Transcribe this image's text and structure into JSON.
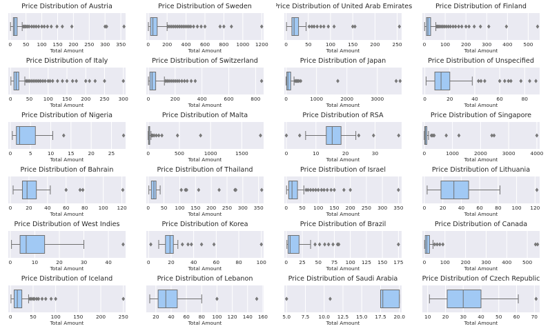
{
  "chart_data": [
    {
      "type": "box",
      "title": "Price Distribution of Austria",
      "xlabel": "Total Amount",
      "xlim": [
        -6,
        365
      ],
      "ticks": [
        0,
        50,
        100,
        150,
        200,
        250,
        300,
        350
      ],
      "q1": 10,
      "median": 14,
      "q3": 22,
      "whisker_low": 1,
      "whisker_high": 38,
      "outliers": [
        42,
        46,
        50,
        55,
        60,
        68,
        75,
        82,
        90,
        100,
        108,
        118,
        130,
        148,
        165,
        195,
        300,
        305,
        360
      ]
    },
    {
      "type": "box",
      "title": "Price Distribution of Sweden",
      "xlabel": "Total Amount",
      "xlim": [
        -20,
        1220
      ],
      "ticks": [
        0,
        200,
        400,
        600,
        800,
        1000,
        1200
      ],
      "q1": 25,
      "median": 50,
      "q3": 95,
      "whisker_low": 2,
      "whisker_high": 200,
      "outliers": [
        210,
        230,
        250,
        270,
        290,
        310,
        330,
        350,
        370,
        390,
        410,
        430,
        450,
        480,
        520,
        560,
        600,
        760,
        800,
        880,
        1200
      ]
    },
    {
      "type": "box",
      "title": "Price Distribution of United Arab Emirates",
      "xlabel": "Total Amount",
      "xlim": [
        -4,
        260
      ],
      "ticks": [
        0,
        50,
        100,
        150,
        200,
        250
      ],
      "q1": 13,
      "median": 18,
      "q3": 28,
      "whisker_low": 1,
      "whisker_high": 45,
      "outliers": [
        52,
        58,
        63,
        70,
        78,
        85,
        95,
        108,
        150,
        155,
        255
      ]
    },
    {
      "type": "box",
      "title": "Price Distribution of Finland",
      "xlabel": "Total Amount",
      "xlim": [
        -10,
        555
      ],
      "ticks": [
        0,
        100,
        200,
        300,
        400,
        500
      ],
      "q1": 10,
      "median": 17,
      "q3": 30,
      "whisker_low": 1,
      "whisker_high": 55,
      "outliers": [
        60,
        66,
        72,
        80,
        88,
        96,
        105,
        115,
        125,
        138,
        150,
        165,
        180,
        200,
        215,
        240,
        270,
        310,
        395,
        545
      ]
    },
    {
      "type": "box",
      "title": "Price Distribution of Italy",
      "xlabel": "Total Amount",
      "xlim": [
        -6,
        306
      ],
      "ticks": [
        0,
        50,
        100,
        150,
        200,
        250,
        300
      ],
      "q1": 9,
      "median": 15,
      "q3": 22,
      "whisker_low": 1,
      "whisker_high": 38,
      "outliers": [
        42,
        46,
        50,
        55,
        60,
        65,
        70,
        75,
        80,
        86,
        92,
        100,
        105,
        112,
        125,
        138,
        150,
        165,
        175,
        200,
        210,
        225,
        250,
        300
      ]
    },
    {
      "type": "box",
      "title": "Price Distribution of Switzerland",
      "xlabel": "Total Amount",
      "xlim": [
        -15,
        860
      ],
      "ticks": [
        0,
        200,
        400,
        600,
        800
      ],
      "q1": 12,
      "median": 28,
      "q3": 55,
      "whisker_low": 1,
      "whisker_high": 120,
      "outliers": [
        130,
        142,
        155,
        170,
        185,
        200,
        215,
        230,
        250,
        270,
        290,
        320,
        350,
        845
      ]
    },
    {
      "type": "box",
      "title": "Price Distribution of Japan",
      "xlabel": "Total Amount",
      "xlim": [
        -60,
        3800
      ],
      "ticks": [
        0,
        1000,
        2000,
        3000
      ],
      "q1": 20,
      "median": 60,
      "q3": 150,
      "whisker_low": 1,
      "whisker_high": 260,
      "outliers": [
        300,
        340,
        380,
        420,
        480,
        1700,
        3620,
        3750
      ]
    },
    {
      "type": "box",
      "title": "Price Distribution of Unspecified",
      "xlabel": "Total Amount",
      "xlim": [
        -2,
        92
      ],
      "ticks": [
        0,
        20,
        40,
        60,
        80
      ],
      "q1": 8,
      "median": 13,
      "q3": 20,
      "whisker_low": 1,
      "whisker_high": 38,
      "outliers": [
        43,
        45,
        48,
        60,
        64,
        67,
        69,
        77,
        84,
        89
      ]
    },
    {
      "type": "box",
      "title": "Price Distribution of Nigeria",
      "xlabel": "Total Amount",
      "xlim": [
        -0.5,
        28.5
      ],
      "ticks": [
        0,
        5,
        10,
        15,
        20,
        25
      ],
      "q1": 1.5,
      "median": 2.3,
      "q3": 6.2,
      "whisker_low": 0.5,
      "whisker_high": 10.5,
      "outliers": [
        13.2,
        28
      ]
    },
    {
      "type": "box",
      "title": "Price Distribution of Malta",
      "xlabel": "Total Amount",
      "xlim": [
        -30,
        1850
      ],
      "ticks": [
        0,
        500,
        1000,
        1500
      ],
      "q1": 6,
      "median": 12,
      "q3": 25,
      "whisker_low": 1,
      "whisker_high": 45,
      "outliers": [
        55,
        70,
        95,
        130,
        170,
        220,
        470,
        840,
        1800
      ]
    },
    {
      "type": "box",
      "title": "Price Distribution of RSA",
      "xlabel": "Total Amount",
      "xlim": [
        -0.7,
        39
      ],
      "ticks": [
        0,
        10,
        20,
        30
      ],
      "q1": 13.5,
      "median": 15.5,
      "q3": 18.5,
      "whisker_low": 6.5,
      "whisker_high": 23.5,
      "outliers": [
        0,
        4.5,
        24.5,
        29.5,
        38
      ]
    },
    {
      "type": "box",
      "title": "Price Distribution of Singapore",
      "xlabel": "Total Amount",
      "xlim": [
        -70,
        4100
      ],
      "ticks": [
        0,
        1000,
        2000,
        3000,
        4000
      ],
      "q1": 15,
      "median": 40,
      "q3": 90,
      "whisker_low": 1,
      "whisker_high": 150,
      "outliers": [
        250,
        300,
        350,
        780,
        1230,
        2400,
        2480,
        4000
      ]
    },
    {
      "type": "box",
      "title": "Price Distribution of Bahrain",
      "xlabel": "Total Amount",
      "xlim": [
        -2.2,
        124
      ],
      "ticks": [
        0,
        20,
        40,
        60,
        80,
        100,
        120
      ],
      "q1": 13,
      "median": 18,
      "q3": 28,
      "whisker_low": 3,
      "whisker_high": 43,
      "outliers": [
        60,
        75,
        78,
        121
      ]
    },
    {
      "type": "box",
      "title": "Price Distribution of Thailand",
      "xlabel": "Total Amount",
      "xlim": [
        -6,
        366
      ],
      "ticks": [
        0,
        50,
        100,
        150,
        200,
        250,
        300,
        350
      ],
      "q1": 10,
      "median": 18,
      "q3": 25,
      "whisker_low": 2,
      "whisker_high": 38,
      "outliers": [
        105,
        118,
        122,
        160,
        225,
        275,
        278,
        360
      ]
    },
    {
      "type": "box",
      "title": "Price Distribution of Israel",
      "xlabel": "Total Amount",
      "xlim": [
        -6,
        360
      ],
      "ticks": [
        0,
        50,
        100,
        150,
        200,
        250,
        300,
        350
      ],
      "q1": 8,
      "median": 18,
      "q3": 35,
      "whisker_low": 1,
      "whisker_high": 55,
      "outliers": [
        62,
        68,
        76,
        84,
        92,
        100,
        110,
        118,
        128,
        140,
        150,
        180,
        200,
        350
      ]
    },
    {
      "type": "box",
      "title": "Price Distribution of Lithuania",
      "xlabel": "Total Amount",
      "xlim": [
        -2.2,
        125
      ],
      "ticks": [
        0,
        20,
        40,
        60,
        80,
        100,
        120
      ],
      "q1": 18,
      "median": 32,
      "q3": 48,
      "whisker_low": 3,
      "whisker_high": 82,
      "outliers": [
        122
      ]
    },
    {
      "type": "box",
      "title": "Price Distribution of West Indies",
      "xlabel": "Total Amount",
      "xlim": [
        -0.8,
        47
      ],
      "ticks": [
        0,
        10,
        20,
        30,
        40
      ],
      "q1": 4,
      "median": 6.5,
      "q3": 14,
      "whisker_low": 0.5,
      "whisker_high": 30,
      "outliers": [
        46
      ]
    },
    {
      "type": "box",
      "title": "Price Distribution of Korea",
      "xlabel": "Total Amount",
      "xlim": [
        -2,
        102
      ],
      "ticks": [
        0,
        20,
        40,
        60,
        80,
        100
      ],
      "q1": 15,
      "median": 19,
      "q3": 22,
      "whisker_low": 9,
      "whisker_high": 26,
      "outliers": [
        2,
        30,
        35,
        38,
        47,
        58,
        100
      ]
    },
    {
      "type": "box",
      "title": "Price Distribution of Brazil",
      "xlabel": "Total Amount",
      "xlim": [
        -3,
        180
      ],
      "ticks": [
        0,
        25,
        50,
        75,
        100,
        125,
        150,
        175
      ],
      "q1": 3,
      "median": 6,
      "q3": 20,
      "whisker_low": 1,
      "whisker_high": 38,
      "outliers": [
        45,
        52,
        60,
        66,
        73,
        80,
        82,
        175
      ]
    },
    {
      "type": "box",
      "title": "Price Distribution of Canada",
      "xlabel": "Total Amount",
      "xlim": [
        -10,
        560
      ],
      "ticks": [
        0,
        100,
        200,
        300,
        400,
        500
      ],
      "q1": 4,
      "median": 12,
      "q3": 25,
      "whisker_low": 1,
      "whisker_high": 42,
      "outliers": [
        50,
        62,
        75,
        90,
        540,
        550
      ]
    },
    {
      "type": "box",
      "title": "Price Distribution of Iceland",
      "xlabel": "Total Amount",
      "xlim": [
        -5,
        255
      ],
      "ticks": [
        0,
        50,
        100,
        150,
        200,
        250
      ],
      "q1": 8,
      "median": 15,
      "q3": 25,
      "whisker_low": 1,
      "whisker_high": 40,
      "outliers": [
        43,
        46,
        50,
        53,
        58,
        62,
        70,
        78,
        90,
        100,
        250
      ]
    },
    {
      "type": "box",
      "title": "Price Distribution of Lebanon",
      "xlabel": "Total Amount",
      "xlim": [
        7.5,
        161
      ],
      "ticks": [
        20,
        40,
        60,
        80,
        100,
        120,
        140,
        160
      ],
      "q1": 23,
      "median": 33,
      "q3": 48,
      "whisker_low": 12,
      "whisker_high": 80,
      "outliers": [
        100,
        152
      ]
    },
    {
      "type": "box",
      "title": "Price Distribution of Saudi Arabia",
      "xlabel": "Total Amount",
      "xlim": [
        4.7,
        20.3
      ],
      "ticks": [
        5.0,
        7.5,
        10.0,
        12.5,
        15.0,
        17.5,
        20.0
      ],
      "tick_labels": [
        "5.0",
        "7.5",
        "10.0",
        "12.5",
        "15.0",
        "17.5",
        "20.0"
      ],
      "q1": 17.5,
      "median": 17.8,
      "q3": 20,
      "whisker_low": 17.5,
      "whisker_high": 20,
      "outliers": [
        5,
        10.8
      ]
    },
    {
      "type": "box",
      "title": "Price Distribution of Czech Republic",
      "xlabel": "Total Amount",
      "xlim": [
        7,
        73
      ],
      "ticks": [
        10,
        20,
        30,
        40,
        50,
        60,
        70
      ],
      "q1": 21,
      "median": 30,
      "q3": 40,
      "whisker_low": 11,
      "whisker_high": 61,
      "outliers": [
        71
      ]
    }
  ],
  "colors": {
    "box_fill": "#a1c9f4",
    "stroke": "#6e6e6e",
    "axes_bg": "#eaeaf2",
    "grid": "#ffffff",
    "text": "#262626"
  }
}
